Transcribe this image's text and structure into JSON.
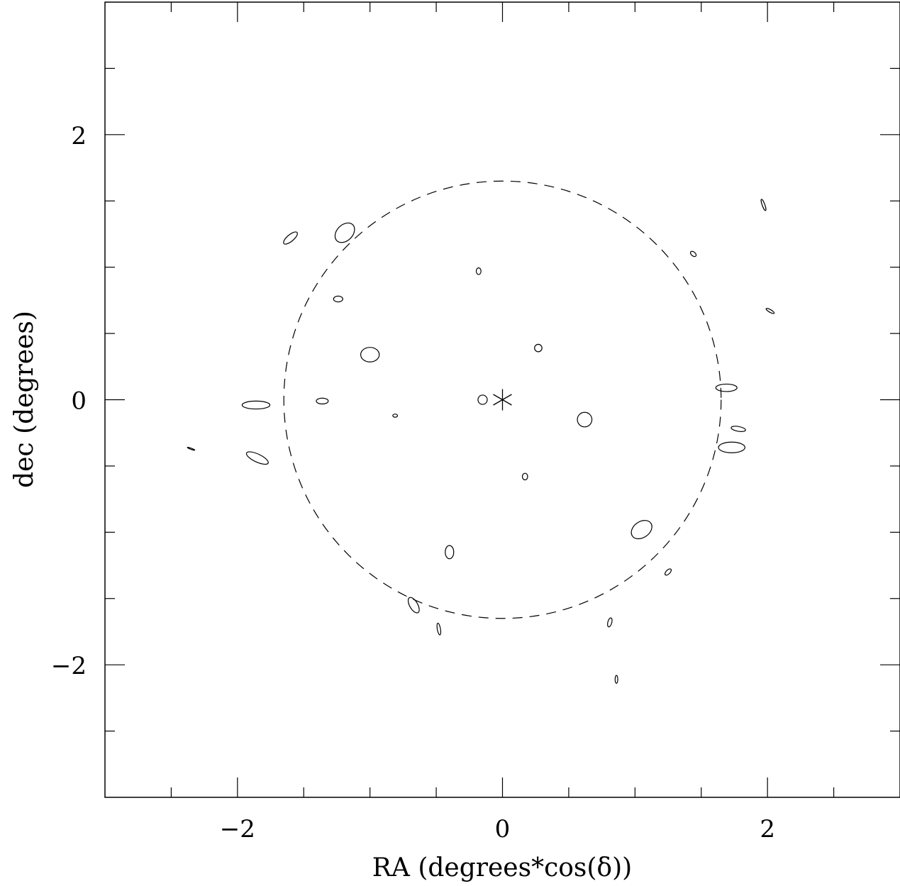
{
  "chart_data": {
    "type": "scatter",
    "title": "",
    "xlabel": "RA (degrees*cos(δ))",
    "ylabel": "dec (degrees)",
    "xlim": [
      -3,
      3
    ],
    "ylim": [
      -3,
      3
    ],
    "x_ticks": [
      -2,
      0,
      2
    ],
    "y_ticks": [
      -2,
      0,
      2
    ],
    "x_tick_labels": [
      "−2",
      "0",
      "2"
    ],
    "y_tick_labels": [
      "−2",
      "0",
      "2"
    ],
    "grid": false,
    "center_marker": {
      "x": 0,
      "y": 0,
      "symbol": "asterisk"
    },
    "circle": {
      "center": [
        0,
        0
      ],
      "radius": 1.65,
      "style": "dashed"
    },
    "sources": [
      {
        "x": -1.19,
        "y": 1.26,
        "a": 0.085,
        "b": 0.06,
        "angle": 45
      },
      {
        "x": -1.6,
        "y": 1.22,
        "a": 0.065,
        "b": 0.025,
        "angle": 40
      },
      {
        "x": -0.18,
        "y": 0.97,
        "a": 0.018,
        "b": 0.025,
        "angle": 0
      },
      {
        "x": -1.24,
        "y": 0.76,
        "a": 0.035,
        "b": 0.022,
        "angle": 0
      },
      {
        "x": -1.0,
        "y": 0.34,
        "a": 0.07,
        "b": 0.055,
        "angle": 0
      },
      {
        "x": 0.27,
        "y": 0.39,
        "a": 0.028,
        "b": 0.028,
        "angle": 0
      },
      {
        "x": -0.15,
        "y": 0.0,
        "a": 0.035,
        "b": 0.035,
        "angle": 0
      },
      {
        "x": -1.36,
        "y": -0.01,
        "a": 0.045,
        "b": 0.022,
        "angle": 0
      },
      {
        "x": -1.86,
        "y": -0.04,
        "a": 0.105,
        "b": 0.03,
        "angle": 0
      },
      {
        "x": -0.81,
        "y": -0.12,
        "a": 0.018,
        "b": 0.012,
        "angle": 0
      },
      {
        "x": 0.62,
        "y": -0.15,
        "a": 0.055,
        "b": 0.055,
        "angle": 0
      },
      {
        "x": -1.85,
        "y": -0.44,
        "a": 0.09,
        "b": 0.03,
        "angle": -25
      },
      {
        "x": -2.35,
        "y": -0.37,
        "a": 0.03,
        "b": 0.004,
        "angle": -20
      },
      {
        "x": 0.17,
        "y": -0.58,
        "a": 0.02,
        "b": 0.025,
        "angle": 0
      },
      {
        "x": 1.05,
        "y": -0.98,
        "a": 0.085,
        "b": 0.06,
        "angle": 35
      },
      {
        "x": -0.4,
        "y": -1.15,
        "a": 0.032,
        "b": 0.05,
        "angle": 0
      },
      {
        "x": -0.67,
        "y": -1.55,
        "a": 0.03,
        "b": 0.065,
        "angle": 30
      },
      {
        "x": -0.48,
        "y": -1.73,
        "a": 0.012,
        "b": 0.045,
        "angle": 10
      },
      {
        "x": 0.81,
        "y": -1.68,
        "a": 0.015,
        "b": 0.035,
        "angle": -15
      },
      {
        "x": 0.86,
        "y": -2.11,
        "a": 0.01,
        "b": 0.03,
        "angle": 0
      },
      {
        "x": 1.25,
        "y": -1.3,
        "a": 0.03,
        "b": 0.015,
        "angle": 45
      },
      {
        "x": 1.69,
        "y": 0.09,
        "a": 0.08,
        "b": 0.028,
        "angle": 0
      },
      {
        "x": 1.78,
        "y": -0.22,
        "a": 0.055,
        "b": 0.018,
        "angle": -10
      },
      {
        "x": 1.73,
        "y": -0.36,
        "a": 0.1,
        "b": 0.04,
        "angle": 0
      },
      {
        "x": 1.97,
        "y": 1.47,
        "a": 0.01,
        "b": 0.045,
        "angle": 20
      },
      {
        "x": 1.44,
        "y": 1.1,
        "a": 0.025,
        "b": 0.015,
        "angle": -40
      },
      {
        "x": 2.02,
        "y": 0.67,
        "a": 0.035,
        "b": 0.01,
        "angle": -30
      }
    ]
  }
}
